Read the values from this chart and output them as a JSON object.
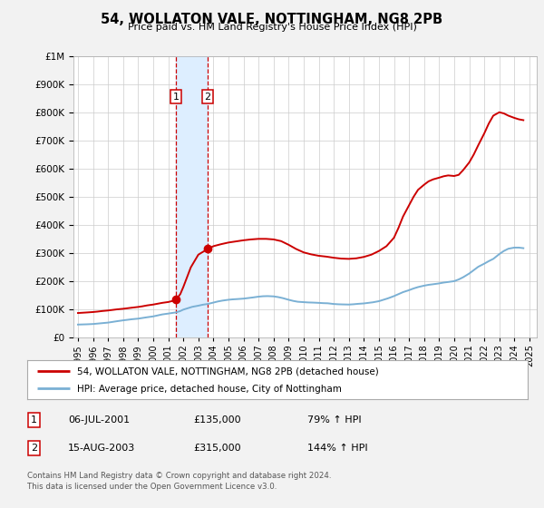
{
  "title": "54, WOLLATON VALE, NOTTINGHAM, NG8 2PB",
  "subtitle": "Price paid vs. HM Land Registry's House Price Index (HPI)",
  "legend_line1": "54, WOLLATON VALE, NOTTINGHAM, NG8 2PB (detached house)",
  "legend_line2": "HPI: Average price, detached house, City of Nottingham",
  "footer_line1": "Contains HM Land Registry data © Crown copyright and database right 2024.",
  "footer_line2": "This data is licensed under the Open Government Licence v3.0.",
  "sale1_label": "1",
  "sale1_date": "06-JUL-2001",
  "sale1_price": "£135,000",
  "sale1_hpi": "79% ↑ HPI",
  "sale1_date_val": 2001.51,
  "sale1_price_val": 135000,
  "sale2_label": "2",
  "sale2_date": "15-AUG-2003",
  "sale2_price": "£315,000",
  "sale2_hpi": "144% ↑ HPI",
  "sale2_date_val": 2003.62,
  "sale2_price_val": 315000,
  "red_color": "#cc0000",
  "blue_color": "#7ab0d4",
  "shade_color": "#ddeeff",
  "background_color": "#f2f2f2",
  "plot_bg_color": "#ffffff",
  "ylim": [
    0,
    1000000
  ],
  "xlim_start": 1994.7,
  "xlim_end": 2025.5,
  "hpi_x": [
    1995.0,
    1995.3,
    1995.6,
    1996.0,
    1996.3,
    1996.6,
    1997.0,
    1997.3,
    1997.6,
    1998.0,
    1998.3,
    1998.6,
    1999.0,
    1999.3,
    1999.6,
    2000.0,
    2000.3,
    2000.6,
    2001.0,
    2001.3,
    2001.51,
    2001.8,
    2002.0,
    2002.3,
    2002.6,
    2003.0,
    2003.3,
    2003.62,
    2004.0,
    2004.3,
    2004.6,
    2005.0,
    2005.3,
    2005.6,
    2006.0,
    2006.3,
    2006.6,
    2007.0,
    2007.3,
    2007.6,
    2008.0,
    2008.3,
    2008.6,
    2009.0,
    2009.3,
    2009.6,
    2010.0,
    2010.3,
    2010.6,
    2011.0,
    2011.3,
    2011.6,
    2012.0,
    2012.3,
    2012.6,
    2013.0,
    2013.3,
    2013.6,
    2014.0,
    2014.3,
    2014.6,
    2015.0,
    2015.3,
    2015.6,
    2016.0,
    2016.3,
    2016.6,
    2017.0,
    2017.3,
    2017.6,
    2018.0,
    2018.3,
    2018.6,
    2019.0,
    2019.3,
    2019.6,
    2020.0,
    2020.3,
    2020.6,
    2021.0,
    2021.3,
    2021.6,
    2022.0,
    2022.3,
    2022.6,
    2023.0,
    2023.3,
    2023.6,
    2024.0,
    2024.3,
    2024.6
  ],
  "hpi_y": [
    47000,
    47500,
    48000,
    49000,
    50500,
    52000,
    54000,
    56500,
    59000,
    62000,
    64000,
    66000,
    68000,
    70500,
    73000,
    76000,
    79500,
    83000,
    86000,
    88500,
    90000,
    95000,
    100000,
    105000,
    110000,
    114000,
    117500,
    120000,
    125000,
    129000,
    132000,
    135000,
    136500,
    137500,
    139000,
    141000,
    143000,
    146000,
    147500,
    148000,
    147000,
    144500,
    141000,
    135000,
    131000,
    128000,
    126500,
    125500,
    125000,
    124000,
    123000,
    122500,
    120000,
    119000,
    118500,
    118000,
    119000,
    120500,
    122000,
    124000,
    126000,
    130000,
    135000,
    140000,
    148000,
    155000,
    162000,
    169000,
    175000,
    180000,
    185000,
    188000,
    190000,
    193000,
    196000,
    198000,
    201000,
    207000,
    215000,
    228000,
    240000,
    252000,
    263000,
    272000,
    280000,
    297000,
    308000,
    316000,
    320000,
    320000,
    318000
  ],
  "prop_x": [
    1995.0,
    1995.3,
    1995.6,
    1996.0,
    1996.3,
    1996.6,
    1997.0,
    1997.3,
    1997.6,
    1998.0,
    1998.3,
    1998.6,
    1999.0,
    1999.3,
    1999.6,
    2000.0,
    2000.3,
    2000.6,
    2001.0,
    2001.3,
    2001.51,
    2001.8,
    2002.0,
    2002.5,
    2003.0,
    2003.62,
    2004.0,
    2004.5,
    2005.0,
    2005.5,
    2006.0,
    2006.5,
    2007.0,
    2007.5,
    2008.0,
    2008.5,
    2009.0,
    2009.5,
    2010.0,
    2010.5,
    2011.0,
    2011.5,
    2012.0,
    2012.5,
    2013.0,
    2013.5,
    2014.0,
    2014.5,
    2015.0,
    2015.5,
    2016.0,
    2016.3,
    2016.6,
    2017.0,
    2017.3,
    2017.6,
    2018.0,
    2018.3,
    2018.6,
    2019.0,
    2019.3,
    2019.6,
    2020.0,
    2020.3,
    2020.6,
    2021.0,
    2021.3,
    2021.6,
    2022.0,
    2022.3,
    2022.6,
    2023.0,
    2023.3,
    2023.6,
    2024.0,
    2024.3,
    2024.6
  ],
  "prop_y": [
    88000,
    89000,
    90000,
    91500,
    93000,
    95000,
    97000,
    99000,
    101000,
    103000,
    105000,
    107000,
    109500,
    112000,
    115000,
    118000,
    121000,
    124000,
    127000,
    131000,
    135000,
    155000,
    180000,
    250000,
    295000,
    315000,
    325000,
    332000,
    338000,
    342000,
    346000,
    349000,
    351000,
    351000,
    349000,
    343000,
    330000,
    315000,
    303000,
    296000,
    291000,
    288000,
    284000,
    281000,
    280000,
    282000,
    287000,
    295000,
    308000,
    325000,
    355000,
    390000,
    430000,
    470000,
    500000,
    525000,
    543000,
    555000,
    562000,
    568000,
    573000,
    576000,
    574000,
    578000,
    595000,
    622000,
    650000,
    683000,
    725000,
    760000,
    788000,
    800000,
    796000,
    788000,
    780000,
    775000,
    772000
  ]
}
